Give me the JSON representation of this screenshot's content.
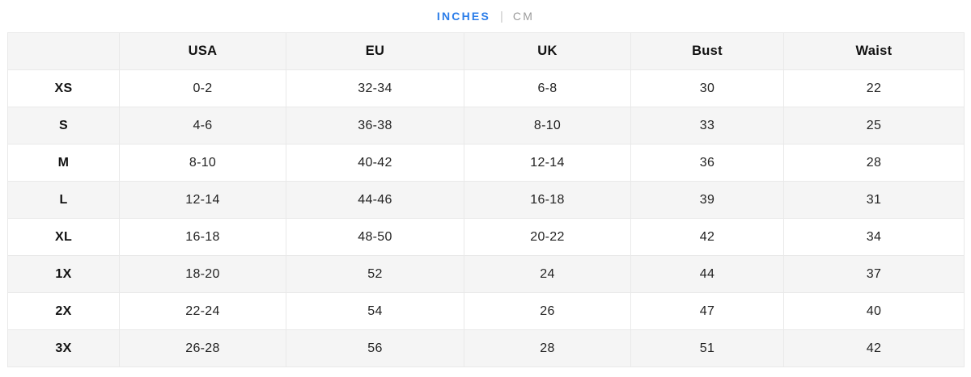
{
  "toggle": {
    "inches_label": "INCHES",
    "separator": "|",
    "cm_label": "CM",
    "active_unit": "INCHES",
    "active_color": "#2b7de9",
    "inactive_color": "#9b9b9b"
  },
  "table": {
    "columns": [
      "",
      "USA",
      "EU",
      "UK",
      "Bust",
      "Waist"
    ],
    "rows": [
      {
        "size": "XS",
        "usa": "0-2",
        "eu": "32-34",
        "uk": "6-8",
        "bust": "30",
        "waist": "22"
      },
      {
        "size": "S",
        "usa": "4-6",
        "eu": "36-38",
        "uk": "8-10",
        "bust": "33",
        "waist": "25"
      },
      {
        "size": "M",
        "usa": "8-10",
        "eu": "40-42",
        "uk": "12-14",
        "bust": "36",
        "waist": "28"
      },
      {
        "size": "L",
        "usa": "12-14",
        "eu": "44-46",
        "uk": "16-18",
        "bust": "39",
        "waist": "31"
      },
      {
        "size": "XL",
        "usa": "16-18",
        "eu": "48-50",
        "uk": "20-22",
        "bust": "42",
        "waist": "34"
      },
      {
        "size": "1X",
        "usa": "18-20",
        "eu": "52",
        "uk": "24",
        "bust": "44",
        "waist": "37"
      },
      {
        "size": "2X",
        "usa": "22-24",
        "eu": "54",
        "uk": "26",
        "bust": "47",
        "waist": "40"
      },
      {
        "size": "3X",
        "usa": "26-28",
        "eu": "56",
        "uk": "28",
        "bust": "51",
        "waist": "42"
      }
    ],
    "header_bg": "#f5f5f5",
    "alt_row_bg": "#f5f5f5",
    "border_color": "#e9e9e9"
  }
}
